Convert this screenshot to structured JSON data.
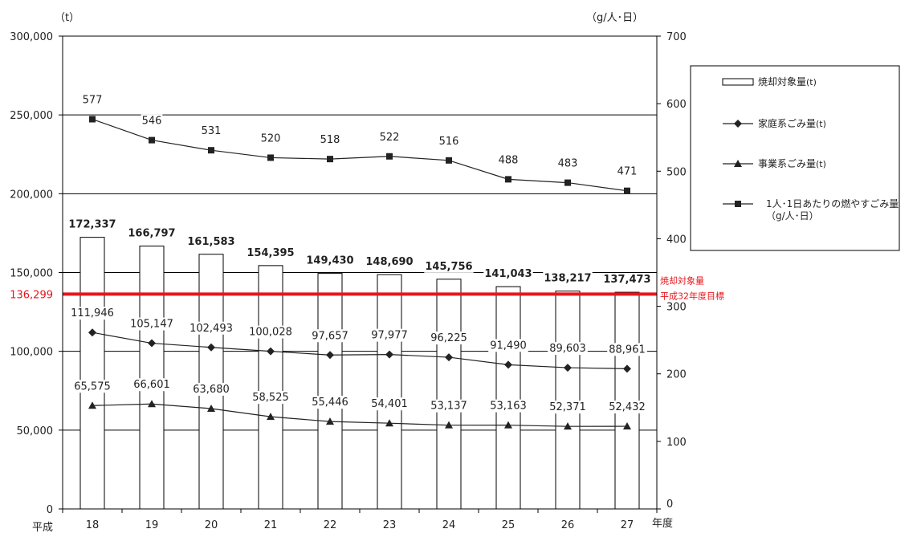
{
  "chart_data": {
    "type": "bar",
    "categories": [
      "18",
      "19",
      "20",
      "21",
      "22",
      "23",
      "24",
      "25",
      "26",
      "27"
    ],
    "x_prefix": "平成",
    "xlabel": "年度",
    "y_left": {
      "unit": "（t）",
      "ylim": [
        0,
        300000
      ],
      "ticks": [
        0,
        50000,
        100000,
        150000,
        200000,
        250000,
        300000
      ],
      "tick_labels": [
        "0",
        "50,000",
        "100,000",
        "150,000",
        "200,000",
        "250,000",
        "300,000"
      ]
    },
    "y_right": {
      "unit": "（g/人･日）",
      "ylim": [
        0,
        700
      ],
      "ticks": [
        0,
        100,
        200,
        300,
        400,
        500,
        600,
        700
      ],
      "tick_labels": [
        "0",
        "100",
        "200",
        "300",
        "400",
        "500",
        "600",
        "700"
      ]
    },
    "series": [
      {
        "name": "焼却対象量",
        "unit": "(t)",
        "kind": "bar",
        "axis": "left",
        "values": [
          172337,
          166797,
          161583,
          154395,
          149430,
          148690,
          145756,
          141043,
          138217,
          137473
        ],
        "labels": [
          "172,337",
          "166,797",
          "161,583",
          "154,395",
          "149,430",
          "148,690",
          "145,756",
          "141,043",
          "138,217",
          "137,473"
        ]
      },
      {
        "name": "家庭系ごみ量",
        "unit": "(t)",
        "kind": "line",
        "marker": "diamond",
        "axis": "left",
        "values": [
          111946,
          105147,
          102493,
          100028,
          97657,
          97977,
          96225,
          91490,
          89603,
          88961
        ],
        "labels": [
          "111,946",
          "105,147",
          "102,493",
          "100,028",
          "97,657",
          "97,977",
          "96,225",
          "91,490",
          "89,603",
          "88,961"
        ]
      },
      {
        "name": "事業系ごみ量",
        "unit": "(t)",
        "kind": "line",
        "marker": "triangle",
        "axis": "left",
        "values": [
          65575,
          66601,
          63680,
          58525,
          55446,
          54401,
          53137,
          53163,
          52371,
          52432
        ],
        "labels": [
          "65,575",
          "66,601",
          "63,680",
          "58,525",
          "55,446",
          "54,401",
          "53,137",
          "53,163",
          "52,371",
          "52,432"
        ]
      },
      {
        "name": "1人･1日あたりの燃やすごみ量",
        "unit": "（g/人･日）",
        "kind": "line",
        "marker": "square",
        "axis": "right",
        "values": [
          577,
          546,
          531,
          520,
          518,
          522,
          516,
          488,
          483,
          471
        ],
        "labels": [
          "577",
          "546",
          "531",
          "520",
          "518",
          "522",
          "516",
          "488",
          "483",
          "471"
        ]
      }
    ],
    "target": {
      "value": 136299,
      "label": "136,299",
      "text_line1": "焼却対象量",
      "text_line2": "平成32年度目標",
      "color": "#e8141b"
    },
    "grid": true,
    "legend_position": "right"
  }
}
